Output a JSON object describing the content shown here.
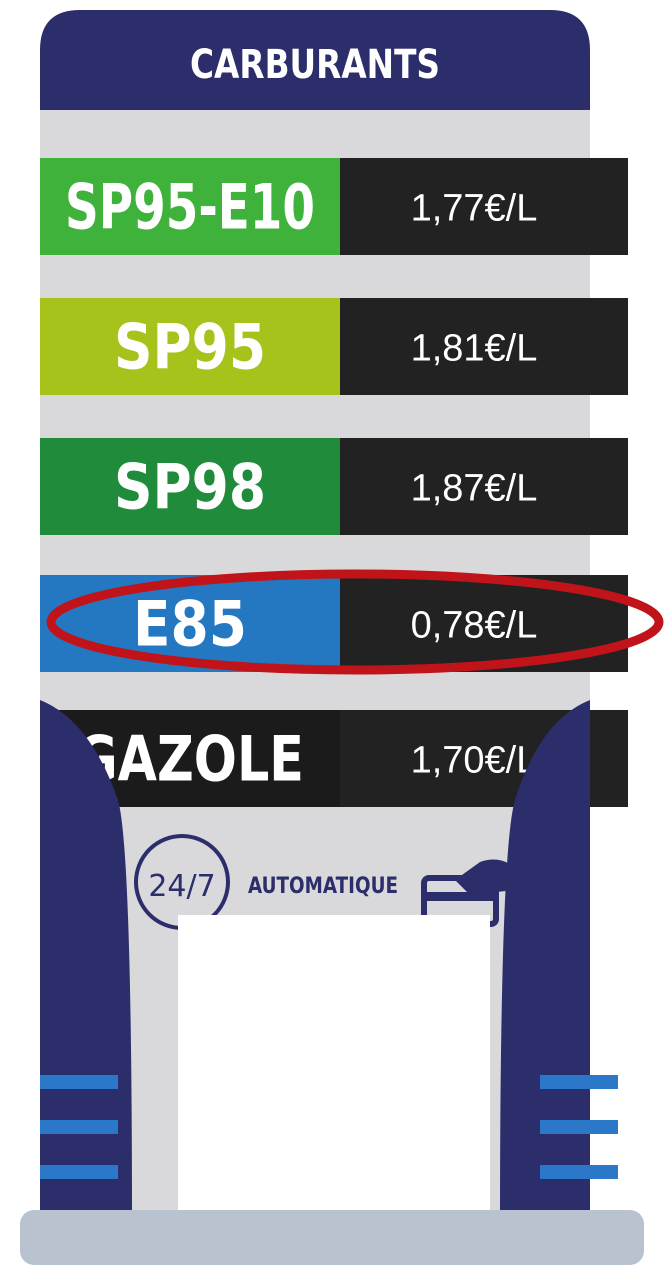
{
  "header": {
    "title": "CARBURANTS"
  },
  "fuels": [
    {
      "name": "SP95-E10",
      "price": "1,77€/L",
      "color": "#3fb23b"
    },
    {
      "name": "SP95",
      "price": "1,81€/L",
      "color": "#a6c31c"
    },
    {
      "name": "SP98",
      "price": "1,87€/L",
      "color": "#1f8b3b"
    },
    {
      "name": "E85",
      "price": "0,78€/L",
      "color": "#2378c1"
    },
    {
      "name": "GAZOLE",
      "price": "1,70€/L",
      "color": "#1b1b1b"
    }
  ],
  "footer": {
    "hours": "24/7",
    "mode": "AUTOMATIQUE"
  }
}
